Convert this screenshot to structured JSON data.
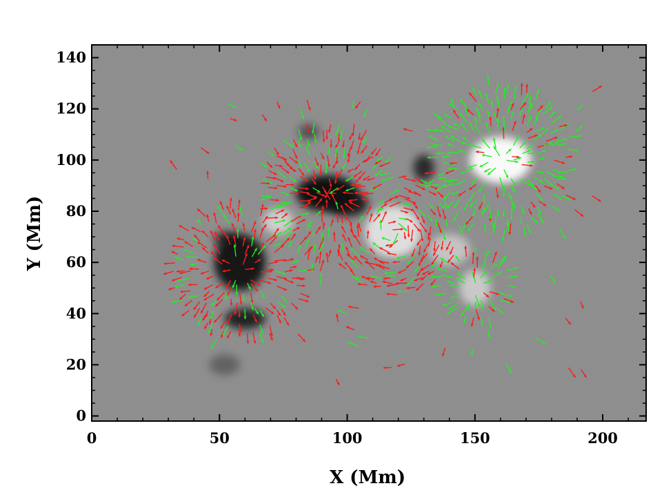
{
  "chart_data": {
    "type": "vector-field magnetogram",
    "xlabel": "X (Mm)",
    "ylabel": "Y (Mm)",
    "xlim": [
      0,
      217
    ],
    "ylim": [
      -2,
      145
    ],
    "xticks": [
      0,
      50,
      100,
      150,
      200
    ],
    "yticks": [
      0,
      20,
      40,
      60,
      80,
      100,
      120,
      140
    ],
    "xtick_labels": [
      "0",
      "50",
      "100",
      "150",
      "200"
    ],
    "ytick_labels": [
      "0",
      "20",
      "40",
      "60",
      "80",
      "100",
      "120",
      "140"
    ],
    "grid": false,
    "background_color": "#8a8a8a",
    "vector_colors": {
      "red": "#ff1a1a",
      "green": "#22ee22"
    },
    "polarity_regions": [
      {
        "polarity": "negative",
        "x": 92,
        "y": 87,
        "rx": 12,
        "ry": 7,
        "strength": 1.0
      },
      {
        "polarity": "negative",
        "x": 100,
        "y": 83,
        "rx": 8,
        "ry": 5,
        "strength": 0.9
      },
      {
        "polarity": "negative",
        "x": 58,
        "y": 60,
        "rx": 10,
        "ry": 11,
        "strength": 0.95
      },
      {
        "polarity": "negative",
        "x": 60,
        "y": 38,
        "rx": 8,
        "ry": 4,
        "strength": 0.85
      },
      {
        "polarity": "negative",
        "x": 53,
        "y": 69,
        "rx": 5,
        "ry": 3,
        "strength": 0.8
      },
      {
        "polarity": "negative",
        "x": 130,
        "y": 97,
        "rx": 4,
        "ry": 5,
        "strength": 0.8
      },
      {
        "polarity": "negative",
        "x": 85,
        "y": 111,
        "rx": 4,
        "ry": 3,
        "strength": 0.5
      },
      {
        "polarity": "negative",
        "x": 52,
        "y": 20,
        "rx": 6,
        "ry": 4,
        "strength": 0.35
      },
      {
        "polarity": "positive",
        "x": 160,
        "y": 100,
        "rx": 12,
        "ry": 9,
        "strength": 1.0
      },
      {
        "polarity": "positive",
        "x": 118,
        "y": 72,
        "rx": 11,
        "ry": 10,
        "strength": 0.75
      },
      {
        "polarity": "positive",
        "x": 73,
        "y": 76,
        "rx": 6,
        "ry": 5,
        "strength": 0.6
      },
      {
        "polarity": "positive",
        "x": 150,
        "y": 50,
        "rx": 6,
        "ry": 7,
        "strength": 0.55
      },
      {
        "polarity": "positive",
        "x": 140,
        "y": 65,
        "rx": 8,
        "ry": 6,
        "strength": 0.5
      }
    ],
    "vector_field_sources": [
      {
        "x": 160,
        "y": 100,
        "type": "source",
        "color": "green",
        "radius": 28
      },
      {
        "x": 58,
        "y": 57,
        "type": "source",
        "color": "red",
        "radius": 26
      },
      {
        "x": 93,
        "y": 86,
        "type": "sink",
        "color": "red",
        "radius": 30
      },
      {
        "x": 118,
        "y": 72,
        "type": "swirl",
        "color": "red",
        "radius": 25
      },
      {
        "x": 150,
        "y": 50,
        "type": "source",
        "color": "green",
        "radius": 14
      }
    ]
  }
}
